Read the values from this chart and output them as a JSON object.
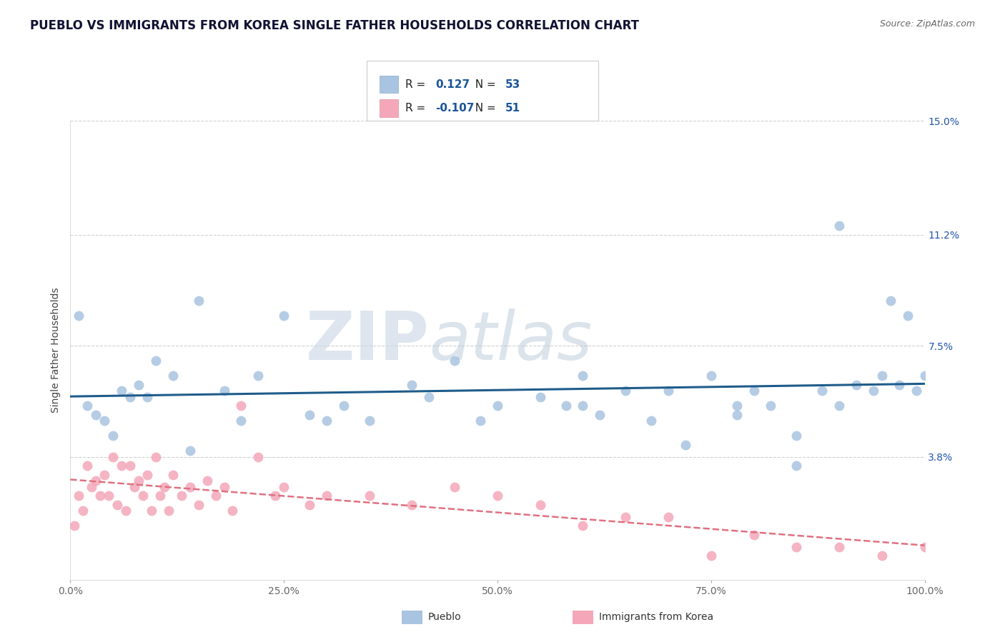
{
  "title": "PUEBLO VS IMMIGRANTS FROM KOREA SINGLE FATHER HOUSEHOLDS CORRELATION CHART",
  "source": "Source: ZipAtlas.com",
  "ylabel": "Single Father Households",
  "x_min": 0.0,
  "x_max": 100.0,
  "y_min": -0.3,
  "y_max": 15.0,
  "y_ticks": [
    3.8,
    7.5,
    11.2,
    15.0
  ],
  "y_tick_labels": [
    "3.8%",
    "7.5%",
    "11.2%",
    "15.0%"
  ],
  "x_ticks": [
    0.0,
    25.0,
    50.0,
    75.0,
    100.0
  ],
  "x_tick_labels": [
    "0.0%",
    "25.0%",
    "50.0%",
    "75.0%",
    "100.0%"
  ],
  "pueblo_color": "#a8c4e0",
  "korea_color": "#f4a7b9",
  "trend_blue": "#1f5c8b",
  "trend_pink": "#e07080",
  "r_pueblo": 0.127,
  "n_pueblo": 53,
  "r_korea": -0.107,
  "n_korea": 51,
  "watermark_zip": "ZIP",
  "watermark_atlas": "atlas",
  "legend_pueblo": "Pueblo",
  "legend_korea": "Immigrants from Korea",
  "background_color": "#ffffff",
  "grid_color": "#d0d0d0",
  "pueblo_x": [
    1,
    2,
    3,
    4,
    5,
    6,
    7,
    8,
    9,
    10,
    12,
    14,
    15,
    18,
    20,
    22,
    25,
    28,
    30,
    32,
    35,
    40,
    42,
    45,
    48,
    50,
    55,
    58,
    60,
    62,
    65,
    68,
    70,
    72,
    75,
    78,
    80,
    82,
    85,
    88,
    90,
    92,
    94,
    95,
    96,
    97,
    98,
    99,
    100,
    60,
    78,
    85,
    90
  ],
  "pueblo_y": [
    8.5,
    5.5,
    5.2,
    5.0,
    4.5,
    6.0,
    5.8,
    6.2,
    5.8,
    7.0,
    6.5,
    4.0,
    9.0,
    6.0,
    5.0,
    6.5,
    8.5,
    5.2,
    5.0,
    5.5,
    5.0,
    6.2,
    5.8,
    7.0,
    5.0,
    5.5,
    5.8,
    5.5,
    6.5,
    5.2,
    6.0,
    5.0,
    6.0,
    4.2,
    6.5,
    5.5,
    6.0,
    5.5,
    4.5,
    6.0,
    11.5,
    6.2,
    6.0,
    6.5,
    9.0,
    6.2,
    8.5,
    6.0,
    6.5,
    5.5,
    5.2,
    3.5,
    5.5
  ],
  "korea_x": [
    0.5,
    1,
    1.5,
    2,
    2.5,
    3,
    3.5,
    4,
    4.5,
    5,
    5.5,
    6,
    6.5,
    7,
    7.5,
    8,
    8.5,
    9,
    9.5,
    10,
    10.5,
    11,
    11.5,
    12,
    13,
    14,
    15,
    16,
    17,
    18,
    19,
    20,
    22,
    24,
    25,
    28,
    30,
    35,
    40,
    45,
    50,
    55,
    60,
    65,
    70,
    75,
    80,
    85,
    90,
    95,
    100
  ],
  "korea_y": [
    1.5,
    2.5,
    2.0,
    3.5,
    2.8,
    3.0,
    2.5,
    3.2,
    2.5,
    3.8,
    2.2,
    3.5,
    2.0,
    3.5,
    2.8,
    3.0,
    2.5,
    3.2,
    2.0,
    3.8,
    2.5,
    2.8,
    2.0,
    3.2,
    2.5,
    2.8,
    2.2,
    3.0,
    2.5,
    2.8,
    2.0,
    5.5,
    3.8,
    2.5,
    2.8,
    2.2,
    2.5,
    2.5,
    2.2,
    2.8,
    2.5,
    2.2,
    1.5,
    1.8,
    1.8,
    0.5,
    1.2,
    0.8,
    0.8,
    0.5,
    0.8
  ]
}
